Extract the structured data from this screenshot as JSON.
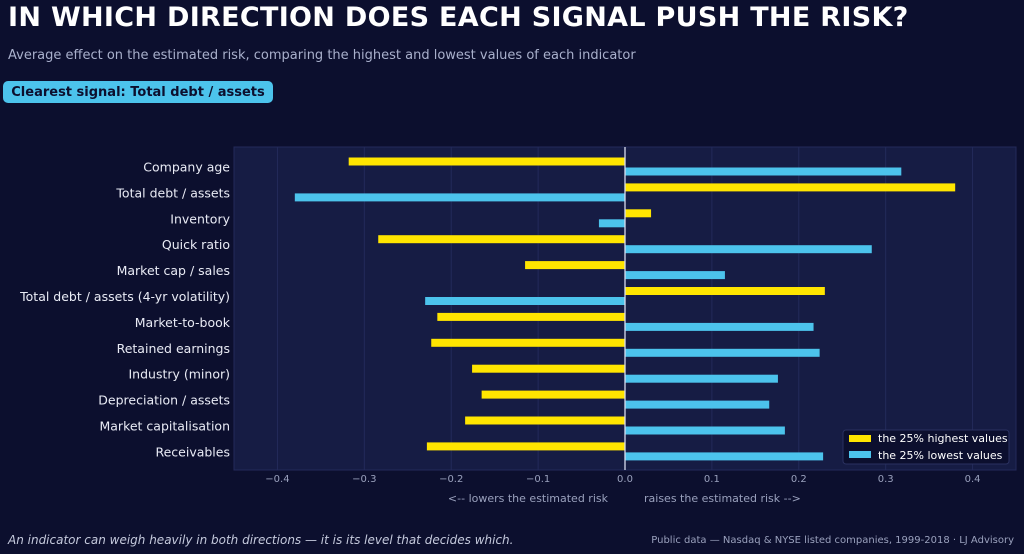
{
  "header": {
    "title": "IN WHICH DIRECTION DOES EACH SIGNAL PUSH THE RISK?",
    "subtitle": "Average effect on the estimated risk, comparing the highest and lowest values of each indicator",
    "badge": "Clearest signal: Total debt / assets"
  },
  "footer": {
    "note": "An indicator can weigh heavily in both directions — it is its level that decides which.",
    "source": "Public data — Nasdaq & NYSE listed companies, 1999-2018  ·  LJ Advisory"
  },
  "colors": {
    "high": "#ffe500",
    "low": "#4cc3ec",
    "plot_bg": "#161c44",
    "page_bg": "#0c0f2e"
  },
  "chart_data": {
    "type": "bar",
    "orientation": "horizontal",
    "categories": [
      "Company age",
      "Total debt / assets",
      "Inventory",
      "Quick ratio",
      "Market cap / sales",
      "Total debt / assets (4-yr volatility)",
      "Market-to-book",
      "Retained earnings",
      "Industry (minor)",
      "Depreciation / assets",
      "Market capitalisation",
      "Receivables"
    ],
    "series": [
      {
        "name": "the 25% highest values",
        "color": "#ffe500",
        "values": [
          -0.318,
          0.38,
          0.03,
          -0.284,
          -0.115,
          0.23,
          -0.216,
          -0.223,
          -0.176,
          -0.165,
          -0.184,
          -0.228
        ]
      },
      {
        "name": "the 25% lowest values",
        "color": "#4cc3ec",
        "values": [
          0.318,
          -0.38,
          -0.03,
          0.284,
          0.115,
          -0.23,
          0.217,
          0.224,
          0.176,
          0.166,
          0.184,
          0.228
        ]
      }
    ],
    "xlim": [
      -0.45,
      0.45
    ],
    "xticks": [
      -0.4,
      -0.3,
      -0.2,
      -0.1,
      0.0,
      0.1,
      0.2,
      0.3,
      0.4
    ],
    "xtick_labels": [
      "−0.4",
      "−0.3",
      "−0.2",
      "−0.1",
      "0.0",
      "0.1",
      "0.2",
      "0.3",
      "0.4"
    ],
    "xlabel_left": "<-- lowers the estimated risk",
    "xlabel_right": "raises the estimated risk -->",
    "grid": true,
    "legend_position": "bottom-right"
  }
}
